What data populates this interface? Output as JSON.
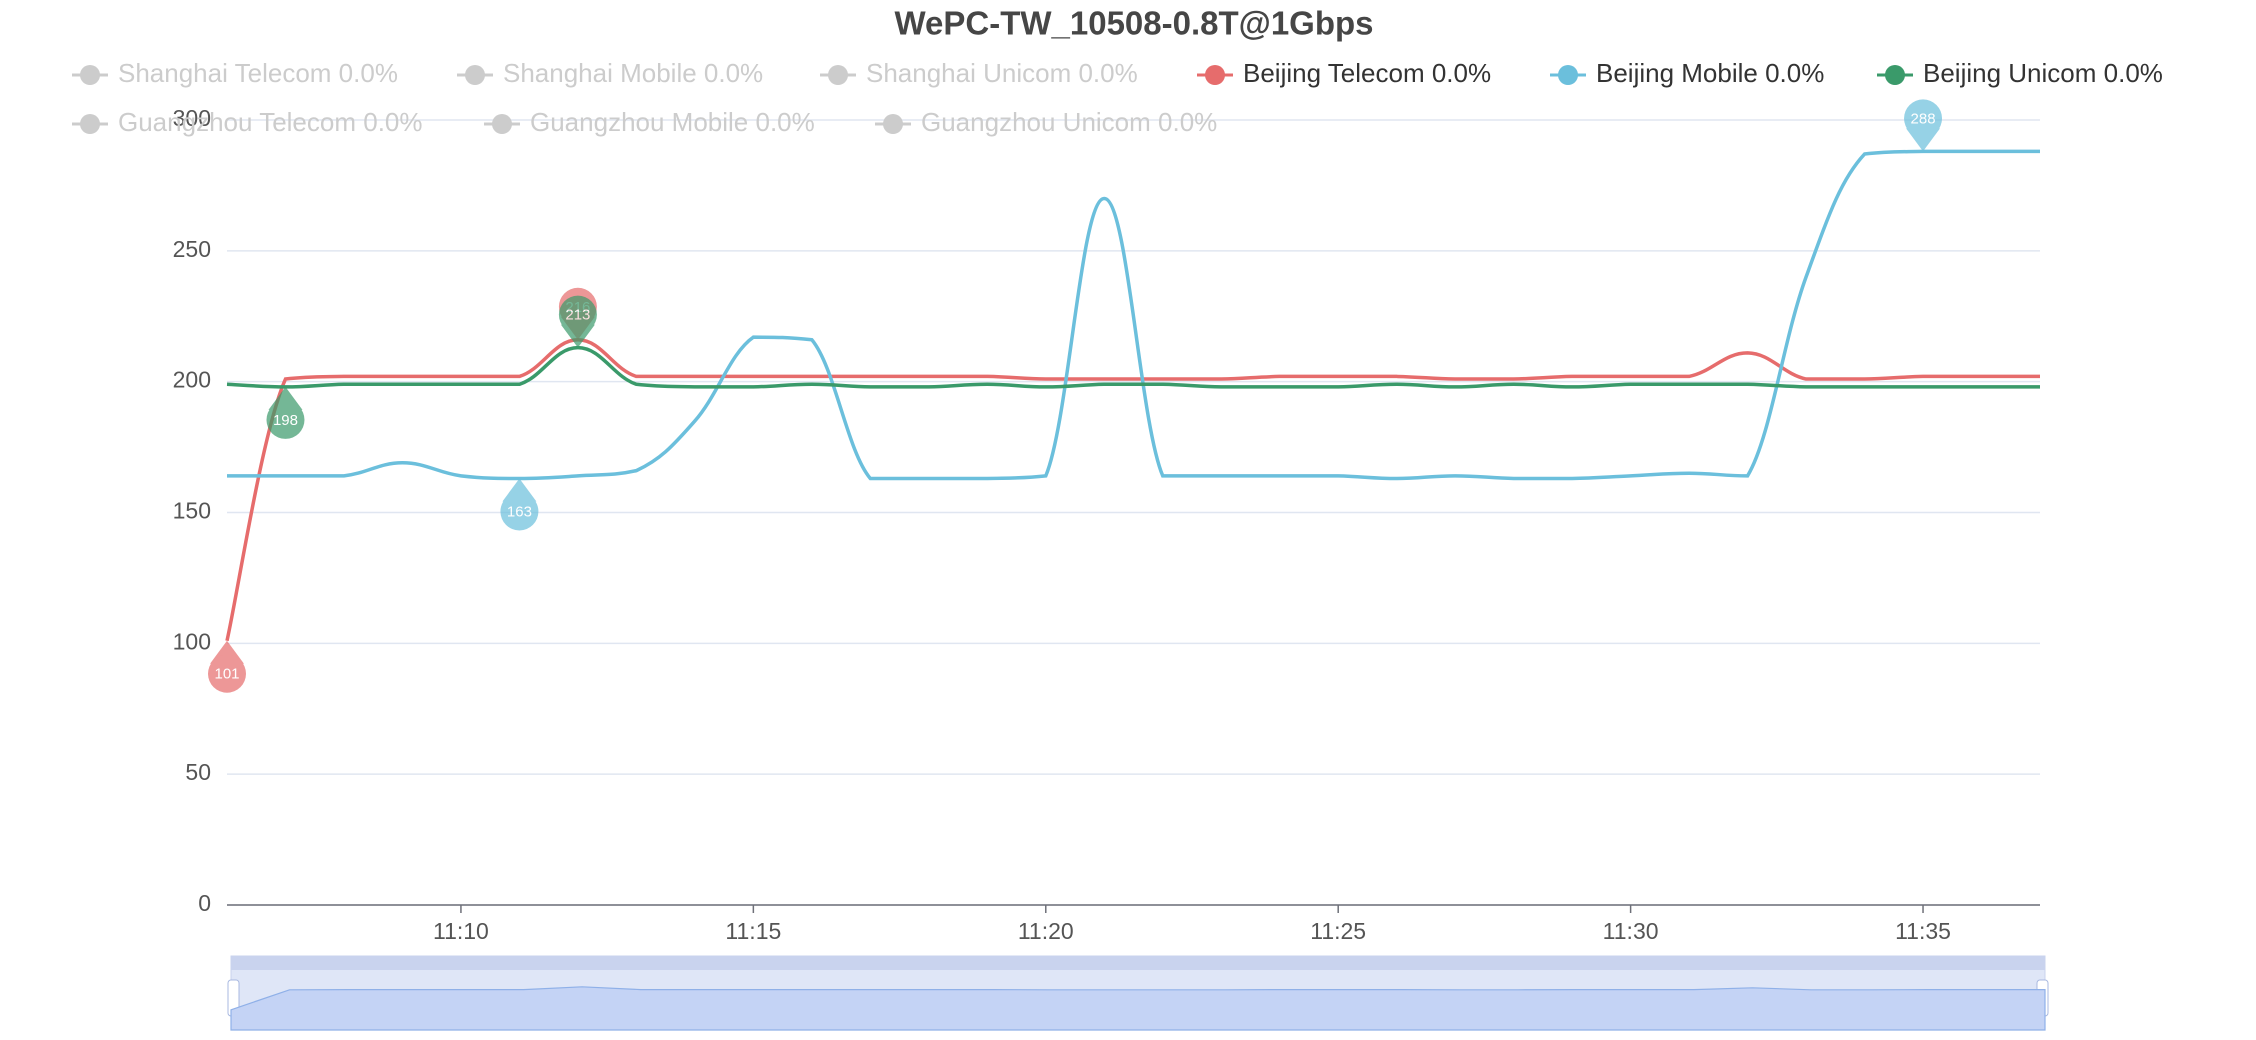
{
  "chart_data": {
    "type": "line",
    "title": "WePC-TW_10508-0.8T@1Gbps",
    "categories": [
      null,
      null,
      null,
      null,
      "11:10",
      null,
      null,
      null,
      null,
      "11:15",
      null,
      null,
      null,
      null,
      "11:20",
      null,
      null,
      null,
      null,
      "11:25",
      null,
      null,
      null,
      null,
      "11:30",
      null,
      null,
      null,
      null,
      "11:35",
      null,
      null
    ],
    "ylim": [
      0,
      300
    ],
    "yticks": [
      0,
      50,
      100,
      150,
      200,
      250,
      300
    ],
    "grid": true,
    "smooth": true,
    "markpoints": [
      "max",
      "min"
    ],
    "series": [
      {
        "name": "Shanghai Telecom 0.0%",
        "visible": false
      },
      {
        "name": "Shanghai Mobile 0.0%",
        "visible": false
      },
      {
        "name": "Shanghai Unicom 0.0%",
        "visible": false
      },
      {
        "name": "Beijing Telecom 0.0%",
        "visible": true,
        "color": "#e66c6c",
        "values": [
          101,
          201,
          202,
          202,
          202,
          202,
          216,
          202,
          202,
          202,
          202,
          202,
          202,
          202,
          201,
          201,
          201,
          201,
          202,
          202,
          202,
          201,
          201,
          202,
          202,
          202,
          211,
          201,
          201,
          202,
          202,
          202
        ]
      },
      {
        "name": "Beijing Mobile 0.0%",
        "visible": true,
        "color": "#6bbfdc",
        "values": [
          164,
          164,
          164,
          169,
          164,
          163,
          164,
          166,
          185,
          217,
          216,
          163,
          163,
          163,
          164,
          270,
          164,
          164,
          164,
          164,
          163,
          164,
          163,
          163,
          164,
          165,
          164,
          240,
          287,
          288,
          288,
          288
        ]
      },
      {
        "name": "Beijing Unicom 0.0%",
        "visible": true,
        "color": "#3a9a6a",
        "values": [
          199,
          198,
          199,
          199,
          199,
          199,
          213,
          199,
          198,
          198,
          199,
          198,
          198,
          199,
          198,
          199,
          199,
          198,
          198,
          198,
          199,
          198,
          199,
          198,
          199,
          199,
          199,
          198,
          198,
          198,
          198,
          198
        ]
      },
      {
        "name": "Guangzhou Telecom 0.0%",
        "visible": false
      },
      {
        "name": "Guangzhou Mobile 0.0%",
        "visible": false
      },
      {
        "name": "Guangzhou Unicom 0.0%",
        "visible": false
      }
    ]
  }
}
